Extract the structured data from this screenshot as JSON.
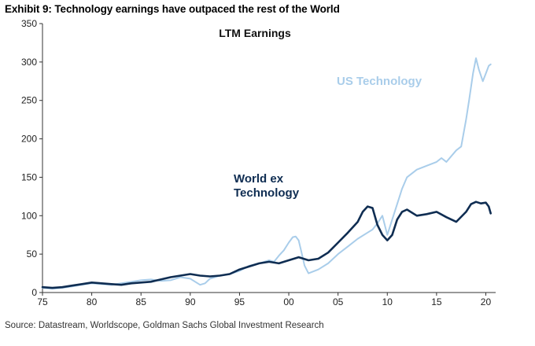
{
  "header": {
    "exhibit_title": "Exhibit 9: Technology earnings have outpaced the rest of the World"
  },
  "footer": {
    "source": "Source: Datastream, Worldscope, Goldman Sachs Global Investment Research"
  },
  "colors": {
    "us_technology": "#a9cdea",
    "world_ex_technology": "#0f2d52",
    "axis": "#333333"
  },
  "chart_data": {
    "type": "line",
    "title": "LTM Earnings",
    "xlabel": "",
    "ylabel": "",
    "xlim": [
      1975,
      2021
    ],
    "ylim": [
      0,
      350
    ],
    "yticks": [
      0,
      50,
      100,
      150,
      200,
      250,
      300,
      350
    ],
    "xticks": [
      {
        "value": 1975,
        "label": "75"
      },
      {
        "value": 1980,
        "label": "80"
      },
      {
        "value": 1985,
        "label": "85"
      },
      {
        "value": 1990,
        "label": "90"
      },
      {
        "value": 1995,
        "label": "95"
      },
      {
        "value": 2000,
        "label": "00"
      },
      {
        "value": 2005,
        "label": "05"
      },
      {
        "value": 2010,
        "label": "10"
      },
      {
        "value": 2015,
        "label": "15"
      },
      {
        "value": 2020,
        "label": "20"
      }
    ],
    "series": [
      {
        "name": "US Technology",
        "label_lines": [
          "US Technology"
        ],
        "x": [
          1975,
          1976,
          1977,
          1978,
          1979,
          1980,
          1981,
          1982,
          1983,
          1984,
          1985,
          1986,
          1987,
          1988,
          1989,
          1990,
          1990.5,
          1991,
          1991.5,
          1992,
          1993,
          1994,
          1995,
          1996,
          1997,
          1998,
          1998.5,
          1999,
          1999.5,
          2000,
          2000.4,
          2000.7,
          2001,
          2001.3,
          2001.6,
          2002,
          2003,
          2004,
          2005,
          2006,
          2007,
          2008,
          2008.5,
          2009,
          2009.5,
          2010,
          2010.5,
          2011,
          2011.5,
          2012,
          2013,
          2014,
          2015,
          2015.5,
          2016,
          2017,
          2017.5,
          2018,
          2018.3,
          2018.7,
          2019,
          2019.3,
          2019.7,
          2020,
          2020.3,
          2020.5
        ],
        "y": [
          6,
          5,
          6,
          8,
          10,
          12,
          11,
          10,
          12,
          14,
          16,
          17,
          15,
          16,
          20,
          18,
          14,
          10,
          12,
          18,
          22,
          24,
          28,
          35,
          38,
          42,
          40,
          48,
          55,
          65,
          72,
          73,
          68,
          52,
          35,
          25,
          30,
          38,
          50,
          60,
          70,
          78,
          82,
          90,
          100,
          75,
          95,
          115,
          135,
          150,
          160,
          165,
          170,
          175,
          170,
          185,
          190,
          225,
          250,
          285,
          305,
          290,
          275,
          285,
          295,
          297
        ]
      },
      {
        "name": "World ex Technology",
        "label_lines": [
          "World ex",
          "Technology"
        ],
        "x": [
          1975,
          1976,
          1977,
          1978,
          1979,
          1980,
          1981,
          1982,
          1983,
          1984,
          1985,
          1986,
          1987,
          1988,
          1989,
          1990,
          1991,
          1992,
          1993,
          1994,
          1995,
          1996,
          1997,
          1998,
          1999,
          2000,
          2001,
          2002,
          2003,
          2004,
          2005,
          2006,
          2007,
          2007.5,
          2008,
          2008.5,
          2009,
          2009.5,
          2010,
          2010.5,
          2011,
          2011.5,
          2012,
          2013,
          2014,
          2015,
          2016,
          2017,
          2018,
          2018.5,
          2019,
          2019.5,
          2020,
          2020.3,
          2020.5
        ],
        "y": [
          7,
          6,
          7,
          9,
          11,
          13,
          12,
          11,
          10,
          12,
          13,
          14,
          17,
          20,
          22,
          24,
          22,
          21,
          22,
          24,
          30,
          34,
          38,
          40,
          38,
          42,
          46,
          42,
          44,
          52,
          65,
          78,
          92,
          105,
          112,
          110,
          88,
          75,
          68,
          75,
          95,
          105,
          108,
          100,
          102,
          105,
          98,
          92,
          105,
          115,
          118,
          116,
          117,
          112,
          103
        ]
      }
    ],
    "annotations": [
      {
        "text": "US Technology",
        "x": 2009.5,
        "y": 272
      },
      {
        "text": "World ex Technology",
        "x": 1999,
        "y": 140
      }
    ]
  }
}
